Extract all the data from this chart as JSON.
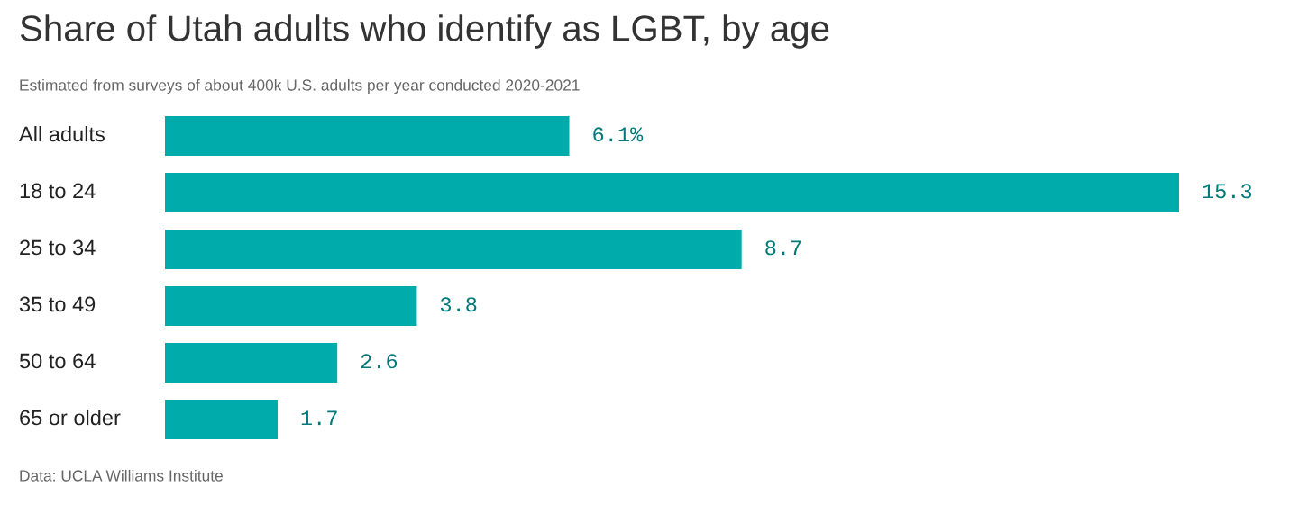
{
  "chart_data": {
    "type": "bar",
    "orientation": "horizontal",
    "title": "Share of Utah adults who identify as LGBT, by age",
    "subtitle": "Estimated from surveys of about 400k U.S. adults per year conducted 2020-2021",
    "categories": [
      "All adults",
      "18 to 24",
      "25 to 34",
      "35 to 49",
      "50 to 64",
      "65 or older"
    ],
    "values": [
      6.1,
      15.3,
      8.7,
      3.8,
      2.6,
      1.7
    ],
    "value_labels": [
      "6.1%",
      "15.3",
      "8.7",
      "3.8",
      "2.6",
      "1.7"
    ],
    "color": "#00abab",
    "annotations": [
      "Data: UCLA Williams Institute"
    ]
  }
}
